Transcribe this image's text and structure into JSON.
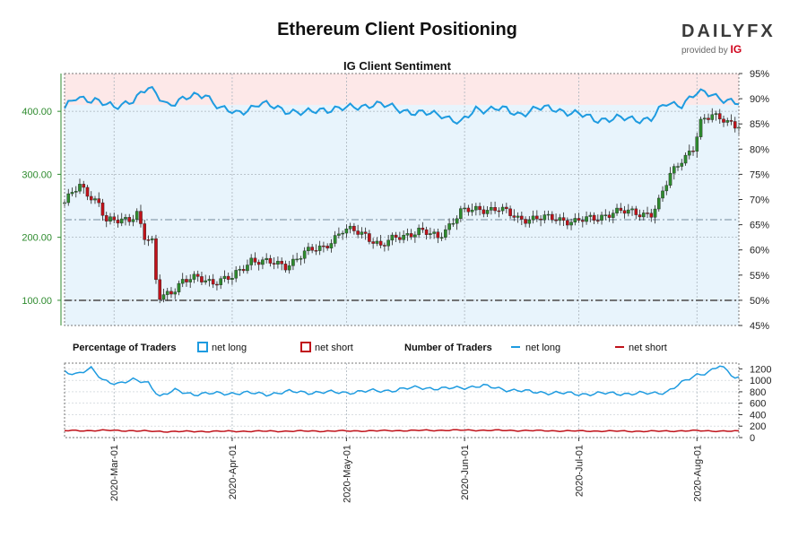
{
  "header": {
    "title": "Ethereum Client Positioning",
    "brand": "DAILYFX",
    "brand_sub": "provided by",
    "brand_ig": "IG"
  },
  "chart_data": [
    {
      "type": "candlestick",
      "title": "IG Client Sentiment",
      "y_left_ticks": [
        "100.00",
        "200.00",
        "300.00",
        "400.00"
      ],
      "y_left_range": [
        60,
        460
      ],
      "y_right_ticks": [
        "45%",
        "50%",
        "55%",
        "60%",
        "65%",
        "70%",
        "75%",
        "80%",
        "85%",
        "90%",
        "95%"
      ],
      "y_right_range": [
        45,
        95
      ],
      "x_range": [
        "2020-02-17",
        "2020-08-12"
      ],
      "reference_levels": {
        "pct_mid": 66,
        "pct_low": 50
      },
      "price_anchors": [
        [
          "2020-02-17",
          255
        ],
        [
          "2020-02-19",
          270
        ],
        [
          "2020-02-21",
          280
        ],
        [
          "2020-02-24",
          265
        ],
        [
          "2020-02-26",
          255
        ],
        [
          "2020-02-28",
          225
        ],
        [
          "2020-03-02",
          225
        ],
        [
          "2020-03-05",
          230
        ],
        [
          "2020-03-07",
          240
        ],
        [
          "2020-03-09",
          200
        ],
        [
          "2020-03-11",
          190
        ],
        [
          "2020-03-12",
          130
        ],
        [
          "2020-03-13",
          105
        ],
        [
          "2020-03-16",
          115
        ],
        [
          "2020-03-19",
          130
        ],
        [
          "2020-03-23",
          135
        ],
        [
          "2020-03-27",
          130
        ],
        [
          "2020-04-01",
          135
        ],
        [
          "2020-04-06",
          165
        ],
        [
          "2020-04-10",
          160
        ],
        [
          "2020-04-15",
          155
        ],
        [
          "2020-04-20",
          175
        ],
        [
          "2020-04-25",
          185
        ],
        [
          "2020-04-30",
          210
        ],
        [
          "2020-05-03",
          210
        ],
        [
          "2020-05-06",
          205
        ],
        [
          "2020-05-10",
          185
        ],
        [
          "2020-05-14",
          200
        ],
        [
          "2020-05-20",
          210
        ],
        [
          "2020-05-25",
          200
        ],
        [
          "2020-05-31",
          240
        ],
        [
          "2020-06-05",
          245
        ],
        [
          "2020-06-10",
          245
        ],
        [
          "2020-06-15",
          230
        ],
        [
          "2020-06-20",
          230
        ],
        [
          "2020-06-25",
          230
        ],
        [
          "2020-06-30",
          225
        ],
        [
          "2020-07-05",
          230
        ],
        [
          "2020-07-10",
          240
        ],
        [
          "2020-07-15",
          240
        ],
        [
          "2020-07-20",
          237
        ],
        [
          "2020-07-22",
          255
        ],
        [
          "2020-07-25",
          300
        ],
        [
          "2020-07-28",
          325
        ],
        [
          "2020-07-31",
          340
        ],
        [
          "2020-08-02",
          380
        ],
        [
          "2020-08-05",
          395
        ],
        [
          "2020-08-08",
          390
        ],
        [
          "2020-08-11",
          375
        ]
      ],
      "net_long_pct_anchors": [
        [
          "2020-02-17",
          88
        ],
        [
          "2020-02-20",
          90
        ],
        [
          "2020-02-25",
          90
        ],
        [
          "2020-03-01",
          88
        ],
        [
          "2020-03-06",
          90
        ],
        [
          "2020-03-10",
          92
        ],
        [
          "2020-03-15",
          89
        ],
        [
          "2020-03-20",
          90
        ],
        [
          "2020-03-25",
          91
        ],
        [
          "2020-03-29",
          88
        ],
        [
          "2020-04-02",
          87
        ],
        [
          "2020-04-08",
          89
        ],
        [
          "2020-04-14",
          88
        ],
        [
          "2020-04-20",
          87
        ],
        [
          "2020-04-25",
          88
        ],
        [
          "2020-05-01",
          88
        ],
        [
          "2020-05-08",
          89
        ],
        [
          "2020-05-15",
          88
        ],
        [
          "2020-05-20",
          87
        ],
        [
          "2020-05-26",
          87
        ],
        [
          "2020-05-31",
          85
        ],
        [
          "2020-06-04",
          88
        ],
        [
          "2020-06-10",
          88
        ],
        [
          "2020-06-15",
          87
        ],
        [
          "2020-06-20",
          88
        ],
        [
          "2020-06-25",
          88
        ],
        [
          "2020-06-30",
          87
        ],
        [
          "2020-07-05",
          86
        ],
        [
          "2020-07-10",
          86
        ],
        [
          "2020-07-15",
          86
        ],
        [
          "2020-07-20",
          86
        ],
        [
          "2020-07-24",
          89
        ],
        [
          "2020-07-28",
          89
        ],
        [
          "2020-08-01",
          91
        ],
        [
          "2020-08-05",
          91
        ],
        [
          "2020-08-08",
          90
        ],
        [
          "2020-08-11",
          89
        ]
      ]
    },
    {
      "type": "line",
      "legend": {
        "pct_title": "Percentage of Traders",
        "pct_long": "net long",
        "pct_short": "net short",
        "num_title": "Number of Traders",
        "num_long": "net long",
        "num_short": "net short"
      },
      "y_right_ticks": [
        "0",
        "200",
        "400",
        "600",
        "800",
        "1000",
        "1200"
      ],
      "y_range": [
        0,
        1300
      ],
      "x_tick_labels": [
        "2020-Mar-01",
        "2020-Apr-01",
        "2020-May-01",
        "2020-Jun-01",
        "2020-Jul-01",
        "2020-Aug-01"
      ],
      "x_tick_dates": [
        "2020-03-01",
        "2020-04-01",
        "2020-05-01",
        "2020-06-01",
        "2020-07-01",
        "2020-08-01"
      ],
      "net_long_count_anchors": [
        [
          "2020-02-17",
          1150
        ],
        [
          "2020-02-20",
          1120
        ],
        [
          "2020-02-24",
          1200
        ],
        [
          "2020-02-27",
          1000
        ],
        [
          "2020-03-02",
          950
        ],
        [
          "2020-03-06",
          1000
        ],
        [
          "2020-03-10",
          960
        ],
        [
          "2020-03-13",
          720
        ],
        [
          "2020-03-17",
          820
        ],
        [
          "2020-03-22",
          760
        ],
        [
          "2020-03-28",
          770
        ],
        [
          "2020-04-04",
          780
        ],
        [
          "2020-04-10",
          760
        ],
        [
          "2020-04-16",
          800
        ],
        [
          "2020-04-22",
          790
        ],
        [
          "2020-05-01",
          790
        ],
        [
          "2020-05-07",
          810
        ],
        [
          "2020-05-14",
          830
        ],
        [
          "2020-05-20",
          880
        ],
        [
          "2020-05-26",
          850
        ],
        [
          "2020-06-01",
          880
        ],
        [
          "2020-06-06",
          900
        ],
        [
          "2020-06-12",
          840
        ],
        [
          "2020-06-18",
          800
        ],
        [
          "2020-06-25",
          780
        ],
        [
          "2020-07-01",
          760
        ],
        [
          "2020-07-07",
          770
        ],
        [
          "2020-07-14",
          770
        ],
        [
          "2020-07-20",
          770
        ],
        [
          "2020-07-24",
          800
        ],
        [
          "2020-07-28",
          950
        ],
        [
          "2020-08-01",
          1100
        ],
        [
          "2020-08-04",
          1150
        ],
        [
          "2020-08-07",
          1250
        ],
        [
          "2020-08-09",
          1150
        ],
        [
          "2020-08-11",
          1050
        ]
      ],
      "net_short_count_anchors": [
        [
          "2020-02-17",
          120
        ],
        [
          "2020-03-01",
          125
        ],
        [
          "2020-03-15",
          105
        ],
        [
          "2020-04-01",
          110
        ],
        [
          "2020-05-01",
          115
        ],
        [
          "2020-06-01",
          130
        ],
        [
          "2020-07-01",
          115
        ],
        [
          "2020-07-20",
          110
        ],
        [
          "2020-08-01",
          120
        ],
        [
          "2020-08-11",
          110
        ]
      ]
    }
  ],
  "colors": {
    "net_long": "#1e9be0",
    "net_short": "#c0121a",
    "long_zone": "#e8f4fc",
    "short_zone": "#fde8e8",
    "left_axis": "#2e8b2e",
    "candle_up": "#2e8b2e",
    "candle_down": "#c0121a"
  }
}
